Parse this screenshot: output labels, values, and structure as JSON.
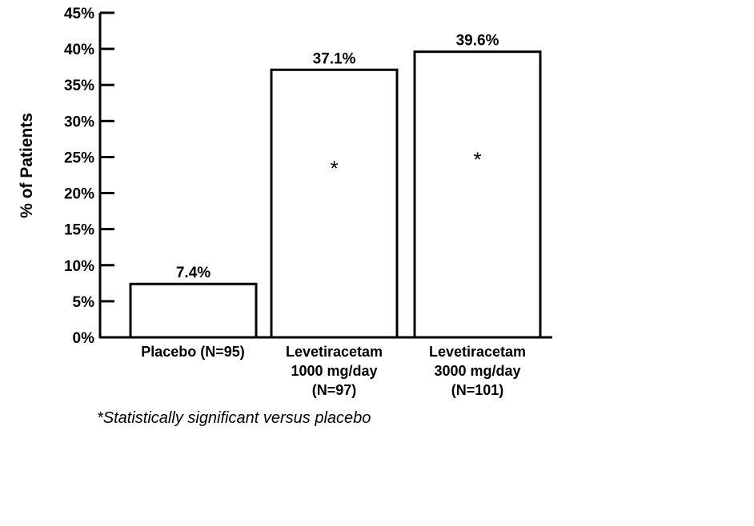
{
  "chart_data": {
    "type": "bar",
    "categories": [
      [
        "Placebo (N=95)"
      ],
      [
        "Levetiracetam",
        "1000 mg/day",
        "(N=97)"
      ],
      [
        "Levetiracetam",
        "3000 mg/day",
        "(N=101)"
      ]
    ],
    "values": [
      7.4,
      37.1,
      39.6
    ],
    "value_labels": [
      "7.4%",
      "37.1%",
      "39.6%"
    ],
    "significance_markers": [
      "",
      "*",
      "*"
    ],
    "ylabel": "% of Patients",
    "ylim": [
      0,
      45
    ],
    "yticks": [
      0,
      5,
      10,
      15,
      20,
      25,
      30,
      35,
      40,
      45
    ],
    "ytick_labels": [
      "0%",
      "5%",
      "10%",
      "15%",
      "20%",
      "25%",
      "30%",
      "35%",
      "40%",
      "45%"
    ],
    "footnote": "*Statistically significant versus placebo",
    "grid": false,
    "colors": {
      "bar_fill": "#ffffff",
      "bar_stroke": "#000000",
      "axis": "#000000"
    }
  }
}
